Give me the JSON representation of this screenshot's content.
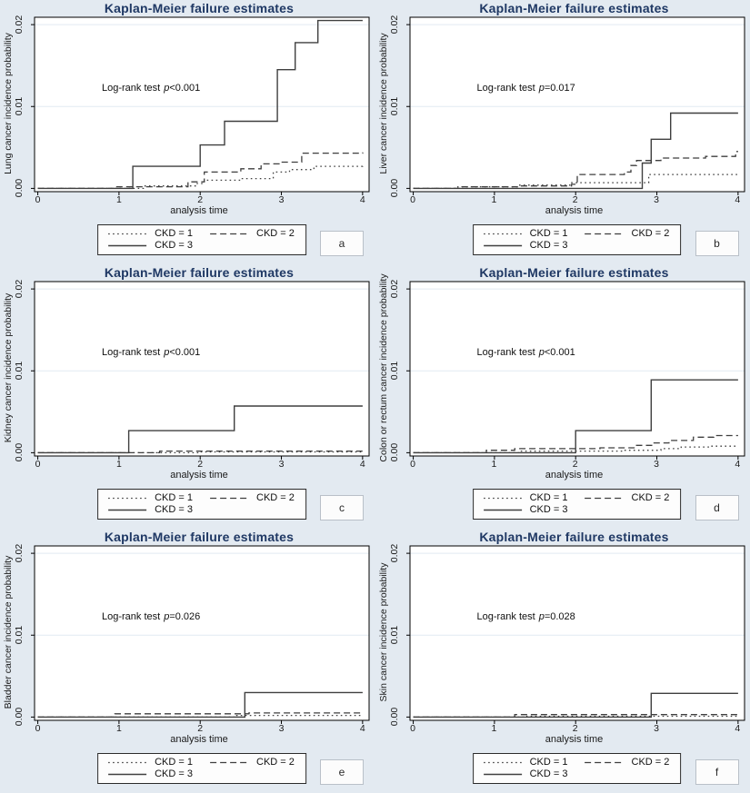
{
  "shared": {
    "p_symbol": "p",
    "axes": {
      "x_tick_labels": [
        "0",
        "1",
        "2",
        "3",
        "4"
      ],
      "y_tick_labels": [
        "0.00",
        "0.01",
        "0.02"
      ]
    },
    "legend": {
      "items": [
        {
          "label": "CKD = 1",
          "style": "dotted"
        },
        {
          "label": "CKD = 2",
          "style": "dashed"
        },
        {
          "label": "CKD = 3",
          "style": "solid"
        }
      ]
    },
    "colors": {
      "background": "#e3eaf1",
      "plot_bg": "#ffffff",
      "title": "#1f3864",
      "line": "#3f3f3f",
      "grid": "#e2eaf2",
      "axis": "#000000"
    }
  },
  "chart_data": [
    {
      "type": "line",
      "title": "Kaplan-Meier failure estimates",
      "xlabel": "analysis time",
      "ylabel": "Lung cancer incidence probability",
      "panel_letter": "a",
      "annotation": {
        "prefix": "Log-rank test",
        "value": "<0.001"
      },
      "xlim": [
        0,
        4
      ],
      "ylim": [
        0,
        0.02
      ],
      "x_ticks": [
        0,
        1,
        2,
        3,
        4
      ],
      "y_ticks": [
        0,
        0.01,
        0.02
      ],
      "series": [
        {
          "name": "CKD = 1",
          "style": "dotted",
          "points": [
            [
              0,
              0
            ],
            [
              1.3,
              0.0003
            ],
            [
              1.95,
              0.0006
            ],
            [
              2.05,
              0.001
            ],
            [
              2.5,
              0.0012
            ],
            [
              2.9,
              0.002
            ],
            [
              3.1,
              0.0023
            ],
            [
              3.4,
              0.0027
            ],
            [
              4,
              0.0028
            ]
          ]
        },
        {
          "name": "CKD = 2",
          "style": "dashed",
          "points": [
            [
              0,
              0
            ],
            [
              0.95,
              0.0002
            ],
            [
              1.85,
              0.0008
            ],
            [
              2.05,
              0.002
            ],
            [
              2.5,
              0.0024
            ],
            [
              2.75,
              0.003
            ],
            [
              3.0,
              0.0032
            ],
            [
              3.25,
              0.0043
            ],
            [
              4,
              0.0044
            ]
          ]
        },
        {
          "name": "CKD = 3",
          "style": "solid",
          "points": [
            [
              0,
              0
            ],
            [
              1.17,
              0.0027
            ],
            [
              2.0,
              0.0053
            ],
            [
              2.3,
              0.0082
            ],
            [
              2.95,
              0.0145
            ],
            [
              3.17,
              0.0178
            ],
            [
              3.45,
              0.0205
            ],
            [
              4,
              0.0205
            ]
          ]
        }
      ]
    },
    {
      "type": "line",
      "title": "Kaplan-Meier failure estimates",
      "xlabel": "analysis time",
      "ylabel": "Liver cancer incidence probability",
      "panel_letter": "b",
      "annotation": {
        "prefix": "Log-rank test",
        "value": "=0.017"
      },
      "xlim": [
        0,
        4
      ],
      "ylim": [
        0,
        0.02
      ],
      "x_ticks": [
        0,
        1,
        2,
        3,
        4
      ],
      "y_ticks": [
        0,
        0.01,
        0.02
      ],
      "series": [
        {
          "name": "CKD = 1",
          "style": "dotted",
          "points": [
            [
              0,
              0
            ],
            [
              0.55,
              0.0002
            ],
            [
              1.3,
              0.0004
            ],
            [
              1.95,
              0.0007
            ],
            [
              2.9,
              0.0017
            ],
            [
              4,
              0.0018
            ]
          ]
        },
        {
          "name": "CKD = 2",
          "style": "dashed",
          "points": [
            [
              0,
              0
            ],
            [
              0.6,
              0.0002
            ],
            [
              1.3,
              0.0003
            ],
            [
              1.95,
              0.0005
            ],
            [
              2.02,
              0.0017
            ],
            [
              2.6,
              0.002
            ],
            [
              2.68,
              0.0028
            ],
            [
              2.75,
              0.0034
            ],
            [
              3.05,
              0.0037
            ],
            [
              3.6,
              0.0039
            ],
            [
              3.97,
              0.0045
            ],
            [
              4,
              0.0045
            ]
          ]
        },
        {
          "name": "CKD = 3",
          "style": "solid",
          "points": [
            [
              0,
              0
            ],
            [
              2.82,
              0.0031
            ],
            [
              2.93,
              0.006
            ],
            [
              3.17,
              0.0092
            ],
            [
              4,
              0.0092
            ]
          ]
        }
      ]
    },
    {
      "type": "line",
      "title": "Kaplan-Meier failure estimates",
      "xlabel": "analysis time",
      "ylabel": "Kidney cancer incidence probability",
      "panel_letter": "c",
      "annotation": {
        "prefix": "Log-rank test",
        "value": "<0.001"
      },
      "xlim": [
        0,
        4
      ],
      "ylim": [
        0,
        0.02
      ],
      "x_ticks": [
        0,
        1,
        2,
        3,
        4
      ],
      "y_ticks": [
        0,
        0.01,
        0.02
      ],
      "series": [
        {
          "name": "CKD = 1",
          "style": "dotted",
          "points": [
            [
              0,
              0
            ],
            [
              2.0,
              0.0001
            ],
            [
              4,
              0.0001
            ]
          ]
        },
        {
          "name": "CKD = 2",
          "style": "dashed",
          "points": [
            [
              0,
              0
            ],
            [
              1.5,
              0.0002
            ],
            [
              4,
              0.0002
            ]
          ]
        },
        {
          "name": "CKD = 3",
          "style": "solid",
          "points": [
            [
              0,
              0
            ],
            [
              1.12,
              0.0027
            ],
            [
              2.42,
              0.0057
            ],
            [
              4,
              0.0057
            ]
          ]
        }
      ]
    },
    {
      "type": "line",
      "title": "Kaplan-Meier failure estimates",
      "xlabel": "analysis time",
      "ylabel": "Colon or rectum cancer incidence probability",
      "panel_letter": "d",
      "annotation": {
        "prefix": "Log-rank test",
        "value": "<0.001"
      },
      "xlim": [
        0,
        4
      ],
      "ylim": [
        0,
        0.02
      ],
      "x_ticks": [
        0,
        1,
        2,
        3,
        4
      ],
      "y_ticks": [
        0,
        0.01,
        0.02
      ],
      "series": [
        {
          "name": "CKD = 1",
          "style": "dotted",
          "points": [
            [
              0,
              0
            ],
            [
              1.3,
              0.0002
            ],
            [
              2.6,
              0.0003
            ],
            [
              3.05,
              0.0005
            ],
            [
              3.3,
              0.0007
            ],
            [
              3.65,
              0.0008
            ],
            [
              4,
              0.0008
            ]
          ]
        },
        {
          "name": "CKD = 2",
          "style": "dashed",
          "points": [
            [
              0,
              0
            ],
            [
              0.9,
              0.0003
            ],
            [
              1.25,
              0.0005
            ],
            [
              2.3,
              0.0006
            ],
            [
              2.75,
              0.0009
            ],
            [
              2.95,
              0.0012
            ],
            [
              3.15,
              0.0015
            ],
            [
              3.45,
              0.0019
            ],
            [
              3.7,
              0.0021
            ],
            [
              4,
              0.0021
            ]
          ]
        },
        {
          "name": "CKD = 3",
          "style": "solid",
          "points": [
            [
              0,
              0
            ],
            [
              2.0,
              0.0027
            ],
            [
              2.93,
              0.0089
            ],
            [
              4,
              0.0089
            ]
          ]
        }
      ]
    },
    {
      "type": "line",
      "title": "Kaplan-Meier failure estimates",
      "xlabel": "analysis time",
      "ylabel": "Bladder cancer incidence probability",
      "panel_letter": "e",
      "annotation": {
        "prefix": "Log-rank test",
        "value": "=0.026"
      },
      "xlim": [
        0,
        4
      ],
      "ylim": [
        0,
        0.02
      ],
      "x_ticks": [
        0,
        1,
        2,
        3,
        4
      ],
      "y_ticks": [
        0,
        0.01,
        0.02
      ],
      "series": [
        {
          "name": "CKD = 1",
          "style": "dotted",
          "points": [
            [
              0,
              0
            ],
            [
              2.45,
              0.0002
            ],
            [
              4,
              0.0002
            ]
          ]
        },
        {
          "name": "CKD = 2",
          "style": "dashed",
          "points": [
            [
              0,
              0
            ],
            [
              0.95,
              0.0004
            ],
            [
              2.6,
              0.0005
            ],
            [
              4,
              0.0005
            ]
          ]
        },
        {
          "name": "CKD = 3",
          "style": "solid",
          "points": [
            [
              0,
              0
            ],
            [
              2.55,
              0.003
            ],
            [
              4,
              0.003
            ]
          ]
        }
      ]
    },
    {
      "type": "line",
      "title": "Kaplan-Meier failure estimates",
      "xlabel": "analysis time",
      "ylabel": "Skin cancer incidence probability",
      "panel_letter": "f",
      "annotation": {
        "prefix": "Log-rank test",
        "value": "=0.028"
      },
      "xlim": [
        0,
        4
      ],
      "ylim": [
        0,
        0.02
      ],
      "x_ticks": [
        0,
        1,
        2,
        3,
        4
      ],
      "y_ticks": [
        0,
        0.01,
        0.02
      ],
      "series": [
        {
          "name": "CKD = 1",
          "style": "dotted",
          "points": [
            [
              0,
              0
            ],
            [
              1.4,
              0.0001
            ],
            [
              4,
              0.0001
            ]
          ]
        },
        {
          "name": "CKD = 2",
          "style": "dashed",
          "points": [
            [
              0,
              0
            ],
            [
              1.25,
              0.0003
            ],
            [
              4,
              0.0003
            ]
          ]
        },
        {
          "name": "CKD = 3",
          "style": "solid",
          "points": [
            [
              0,
              0
            ],
            [
              2.93,
              0.0029
            ],
            [
              4,
              0.0029
            ]
          ]
        }
      ]
    }
  ]
}
